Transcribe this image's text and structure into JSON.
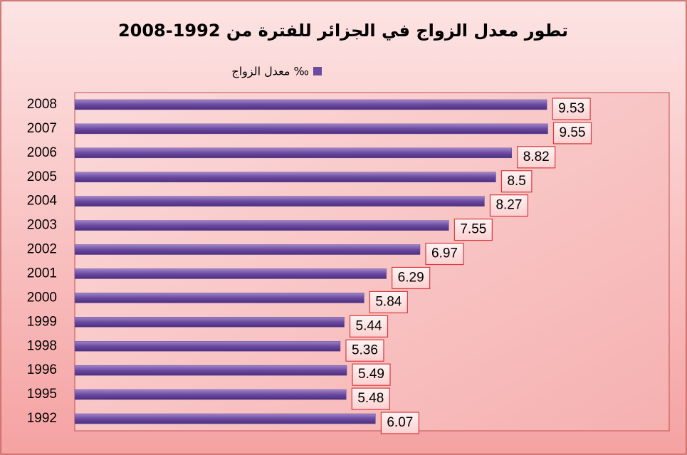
{
  "chart_data": {
    "type": "barh",
    "title": "تطور معدل الزواج في الجزائر للفترة من 1992-2008",
    "categories": [
      "2008",
      "2007",
      "2006",
      "2005",
      "2004",
      "2003",
      "2002",
      "2001",
      "2000",
      "1999",
      "1998",
      "1996",
      "1995",
      "1992"
    ],
    "series": [
      {
        "name": "معدل الزواج ‰",
        "color": "#6b4aa0",
        "values": [
          9.53,
          9.55,
          8.82,
          8.5,
          8.27,
          7.55,
          6.97,
          6.29,
          5.84,
          5.44,
          5.36,
          5.49,
          5.48,
          6.07
        ]
      }
    ],
    "xlim": [
      0,
      12
    ]
  }
}
